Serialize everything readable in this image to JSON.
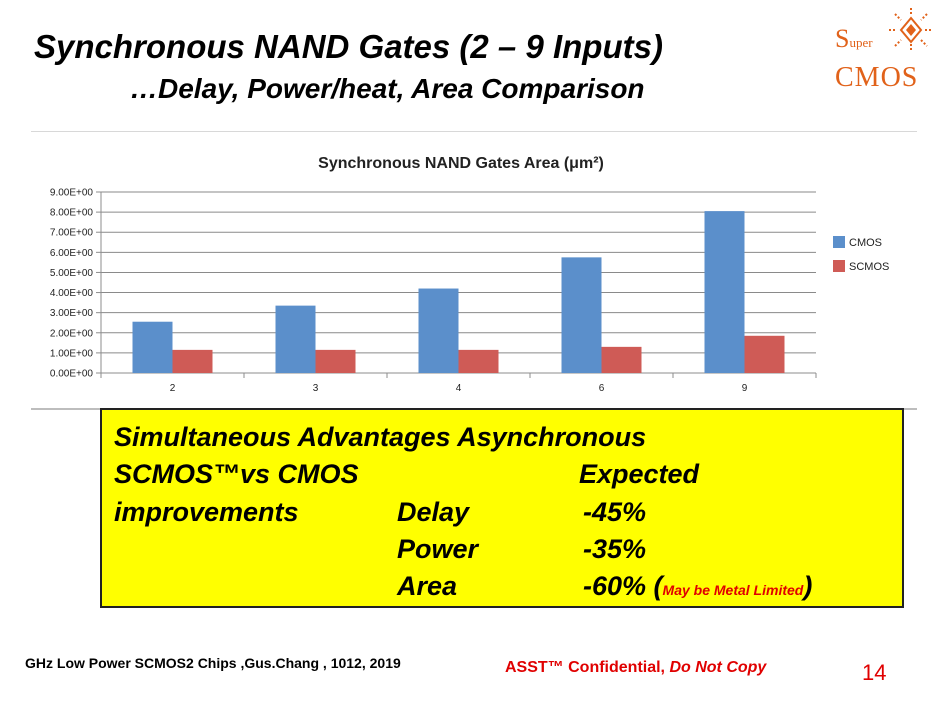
{
  "slide": {
    "title": "Synchronous NAND Gates (2 – 9 Inputs)",
    "subtitle": "…Delay, Power/heat, Area Comparison",
    "logo": {
      "prefix_big": "S",
      "prefix_small": "uper",
      "line2": "CMOS",
      "icon": "sun-diamond-icon",
      "color": "#e1621a"
    }
  },
  "chart_data": {
    "type": "bar",
    "title": "Synchronous NAND Gates Area (μm²)",
    "categories": [
      "2",
      "3",
      "4",
      "6",
      "9"
    ],
    "series": [
      {
        "name": "CMOS",
        "values": [
          2.55,
          3.35,
          4.2,
          5.75,
          8.05
        ],
        "color": "#5b8fcb"
      },
      {
        "name": "SCMOS",
        "values": [
          1.15,
          1.15,
          1.15,
          1.3,
          1.85
        ],
        "color": "#cf5b56"
      }
    ],
    "y_ticks": [
      "0.00E+00",
      "1.00E+00",
      "2.00E+00",
      "3.00E+00",
      "4.00E+00",
      "5.00E+00",
      "6.00E+00",
      "7.00E+00",
      "8.00E+00",
      "9.00E+00"
    ],
    "ylim": [
      0,
      9
    ],
    "grid": true,
    "legend_position": "right"
  },
  "advantages": {
    "line1": "Simultaneous  Advantages Asynchronous",
    "line2_left": "SCMOS™vs CMOS",
    "line2_right": "Expected",
    "line3_left": "improvements",
    "rows": [
      {
        "label": "Delay",
        "value": "-45%"
      },
      {
        "label": "Power",
        "value": "-35%"
      },
      {
        "label": "Area",
        "value": "-60%"
      }
    ],
    "note": "May be Metal Limited"
  },
  "footer": {
    "left": "GHz Low Power SCMOS2 Chips ,Gus.Chang , 1012, 2019",
    "confidential": "ASST™ Confidential, ",
    "do_not_copy": "Do Not Copy",
    "page": "14"
  }
}
